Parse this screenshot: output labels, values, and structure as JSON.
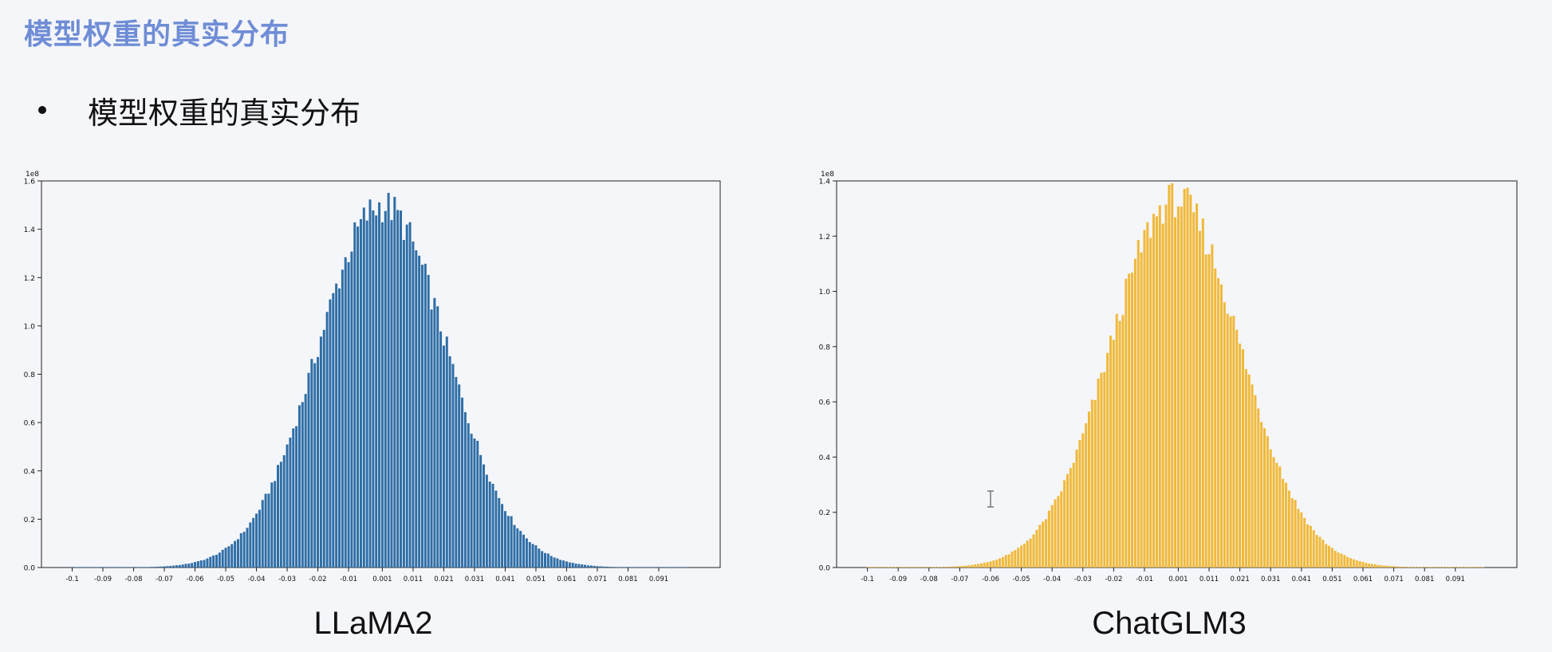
{
  "slide": {
    "title": "模型权重的真实分布",
    "bullet": "模型权重的真实分布"
  },
  "chart_data": [
    {
      "type": "bar",
      "caption": "LLaMA2",
      "color": "#2f6ea6",
      "scale_label": "1e8",
      "xlim": [
        -0.11,
        0.111
      ],
      "ylim": [
        0,
        1.6
      ],
      "yticks": [
        0.0,
        0.2,
        0.4,
        0.6,
        0.8,
        1.0,
        1.2,
        1.4,
        1.6
      ],
      "xticks": [
        -0.1,
        -0.09,
        -0.08,
        -0.07,
        -0.06,
        -0.05,
        -0.04,
        -0.03,
        -0.02,
        -0.01,
        0.001,
        0.011,
        0.021,
        0.031,
        0.041,
        0.051,
        0.061,
        0.071,
        0.081,
        0.091
      ],
      "distribution": {
        "center": 0.001,
        "std": 0.021,
        "peak": 1.53,
        "bin_width": 0.001,
        "range": [
          -0.1,
          0.1
        ]
      }
    },
    {
      "type": "bar",
      "caption": "ChatGLM3",
      "color": "#f0b93a",
      "scale_label": "1e8",
      "xlim": [
        -0.11,
        0.111
      ],
      "ylim": [
        0,
        1.4
      ],
      "yticks": [
        0.0,
        0.2,
        0.4,
        0.6,
        0.8,
        1.0,
        1.2,
        1.4
      ],
      "xticks": [
        -0.1,
        -0.09,
        -0.08,
        -0.07,
        -0.06,
        -0.05,
        -0.04,
        -0.03,
        -0.02,
        -0.01,
        0.001,
        0.011,
        0.021,
        0.031,
        0.041,
        0.051,
        0.061,
        0.071,
        0.081,
        0.091
      ],
      "distribution": {
        "center": 0.0,
        "std": 0.021,
        "peak": 1.36,
        "bin_width": 0.001,
        "range": [
          -0.1,
          0.1
        ]
      }
    }
  ]
}
